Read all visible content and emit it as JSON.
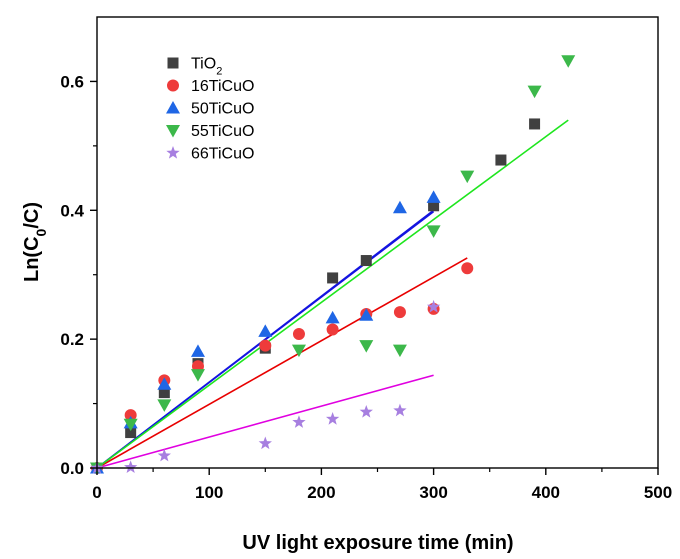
{
  "chart_data": {
    "type": "scatter",
    "xlabel": "UV light exposure time (min)",
    "ylabel": {
      "main": "Ln(C",
      "sub": "0",
      "rest": "/C)"
    },
    "xlim": [
      0,
      500
    ],
    "ylim": [
      0,
      0.7
    ],
    "xticks": [
      "0",
      "100",
      "200",
      "300",
      "400",
      "500"
    ],
    "yticks": [
      "0.0",
      "0.2",
      "0.4",
      "0.6"
    ],
    "legend_position": "top-left",
    "grid": false,
    "series": [
      {
        "name": "TiO",
        "name_sub": "2",
        "marker": "square",
        "color": "#404040",
        "fit_color": "#1414e0",
        "points": [
          [
            0,
            0
          ],
          [
            30,
            0.055
          ],
          [
            60,
            0.117
          ],
          [
            90,
            0.162
          ],
          [
            150,
            0.186
          ],
          [
            210,
            0.295
          ],
          [
            240,
            0.322
          ],
          [
            300,
            0.407
          ],
          [
            360,
            0.478
          ],
          [
            390,
            0.534
          ]
        ],
        "fit": [
          [
            0,
            0
          ],
          [
            300,
            0.398
          ]
        ]
      },
      {
        "name": "16TiCuO",
        "name_sub": "",
        "marker": "circle",
        "color": "#ee3b3b",
        "fit_color": "#e80000",
        "points": [
          [
            0,
            0
          ],
          [
            30,
            0.082
          ],
          [
            60,
            0.136
          ],
          [
            90,
            0.158
          ],
          [
            150,
            0.19
          ],
          [
            180,
            0.208
          ],
          [
            210,
            0.215
          ],
          [
            240,
            0.239
          ],
          [
            270,
            0.242
          ],
          [
            300,
            0.247
          ],
          [
            330,
            0.31
          ]
        ],
        "fit": [
          [
            0,
            0
          ],
          [
            330,
            0.326
          ]
        ]
      },
      {
        "name": "50TiCuO",
        "name_sub": "",
        "marker": "triangle-up",
        "color": "#1f66e5",
        "fit_color": "#1414e0",
        "points": [
          [
            0,
            0
          ],
          [
            30,
            0.07
          ],
          [
            60,
            0.13
          ],
          [
            90,
            0.181
          ],
          [
            150,
            0.212
          ],
          [
            210,
            0.233
          ],
          [
            240,
            0.237
          ],
          [
            270,
            0.404
          ],
          [
            300,
            0.42
          ]
        ],
        "fit": [
          [
            0,
            0
          ],
          [
            300,
            0.4
          ]
        ]
      },
      {
        "name": "55TiCuO",
        "name_sub": "",
        "marker": "triangle-down",
        "color": "#3cb84a",
        "fit_color": "#1ee61e",
        "points": [
          [
            0,
            0
          ],
          [
            30,
            0.068
          ],
          [
            60,
            0.098
          ],
          [
            90,
            0.145
          ],
          [
            180,
            0.183
          ],
          [
            240,
            0.19
          ],
          [
            270,
            0.183
          ],
          [
            300,
            0.368
          ],
          [
            330,
            0.453
          ],
          [
            390,
            0.585
          ],
          [
            420,
            0.632
          ]
        ],
        "fit": [
          [
            0,
            0
          ],
          [
            420,
            0.54
          ]
        ]
      },
      {
        "name": "66TiCuO",
        "name_sub": "",
        "marker": "star",
        "color": "#a77fe0",
        "fit_color": "#e000e0",
        "points": [
          [
            0,
            0
          ],
          [
            30,
            0.001
          ],
          [
            60,
            0.019
          ],
          [
            150,
            0.038
          ],
          [
            180,
            0.071
          ],
          [
            210,
            0.076
          ],
          [
            240,
            0.087
          ],
          [
            270,
            0.089
          ],
          [
            300,
            0.25
          ]
        ],
        "fit": [
          [
            0,
            0
          ],
          [
            300,
            0.144
          ]
        ]
      }
    ]
  }
}
